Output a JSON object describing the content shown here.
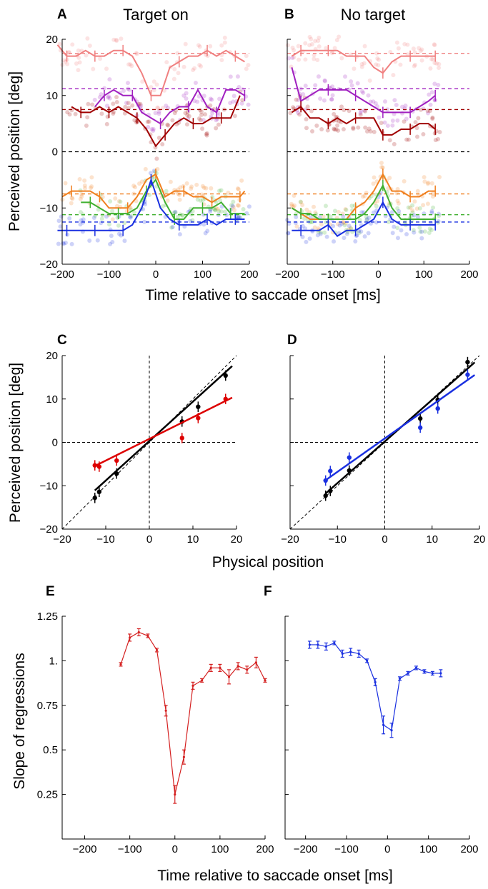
{
  "figure": {
    "panel_letters": [
      "A",
      "B",
      "C",
      "D",
      "E",
      "F"
    ],
    "row1_xlabel": "Time relative to saccade onset [ms]",
    "row2_xlabel": "Physical position",
    "row3_xlabel": "Time relative to saccade onset [ms]"
  },
  "chart_data": [
    {
      "panel": "A",
      "type": "line",
      "title": "Target on",
      "ylabel": "Perceived position [deg]",
      "xlabel": "Time relative to saccade onset [ms]",
      "xlim": [
        -200,
        200
      ],
      "ylim": [
        -20,
        20
      ],
      "xticks": [
        "-200",
        "-100",
        "0",
        "100",
        "200"
      ],
      "yticks": [
        "-20",
        "-10",
        "0",
        "10",
        "20"
      ],
      "reference_lines": [
        {
          "y": 17.5,
          "color": "#f08080"
        },
        {
          "y": 11.2,
          "color": "#a020c0"
        },
        {
          "y": 7.5,
          "color": "#a00000"
        },
        {
          "y": 0,
          "color": "#000000"
        },
        {
          "y": -7.5,
          "color": "#f08020"
        },
        {
          "y": -11.2,
          "color": "#40b030"
        },
        {
          "y": -12.5,
          "color": "#1a30e0"
        }
      ],
      "series": [
        {
          "color": "#f08080",
          "x": [
            -210,
            -190,
            -170,
            -150,
            -130,
            -110,
            -90,
            -70,
            -50,
            -30,
            -10,
            10,
            30,
            50,
            70,
            90,
            110,
            130,
            150,
            170,
            190
          ],
          "y": [
            19,
            17,
            17,
            18,
            17,
            17,
            18,
            18,
            17,
            14,
            10,
            10,
            15,
            16,
            17,
            17,
            18,
            17,
            18,
            17,
            16
          ]
        },
        {
          "color": "#a020c0",
          "x": [
            -130,
            -110,
            -90,
            -70,
            -50,
            -30,
            -10,
            10,
            30,
            50,
            70,
            90,
            110,
            130,
            150,
            170,
            190
          ],
          "y": [
            8,
            10,
            11,
            10,
            10,
            7,
            6,
            5,
            7,
            8,
            8,
            11,
            8,
            7,
            11,
            11,
            10
          ]
        },
        {
          "color": "#a00000",
          "x": [
            -180,
            -160,
            -140,
            -120,
            -100,
            -80,
            -60,
            -40,
            -20,
            0,
            20,
            40,
            60,
            80,
            100,
            120,
            140,
            160,
            180
          ],
          "y": [
            8,
            7,
            7,
            8,
            7,
            8,
            7,
            6,
            4,
            1,
            3,
            5,
            6,
            5,
            5,
            6,
            6,
            6,
            10
          ]
        },
        {
          "color": "#f08020",
          "x": [
            -200,
            -180,
            -160,
            -140,
            -120,
            -100,
            -80,
            -60,
            -40,
            -20,
            0,
            20,
            40,
            60,
            80,
            100,
            120,
            140,
            160,
            180,
            190
          ],
          "y": [
            -8,
            -7,
            -7,
            -7,
            -8,
            -10,
            -10,
            -10,
            -8,
            -5,
            -4,
            -8,
            -7,
            -7,
            -8,
            -8,
            -9,
            -8,
            -8,
            -8,
            -7
          ]
        },
        {
          "color": "#40b030",
          "x": [
            -160,
            -140,
            -120,
            -100,
            -80,
            -60,
            -40,
            -20,
            0,
            20,
            40,
            60,
            80,
            100,
            120,
            140,
            160,
            180,
            190
          ],
          "y": [
            -9,
            -9,
            -10,
            -11,
            -11,
            -11,
            -10,
            -7,
            -5,
            -9,
            -12,
            -12,
            -10,
            -10,
            -10,
            -9,
            -11,
            -11,
            -11
          ]
        },
        {
          "color": "#1a30e0",
          "x": [
            -210,
            -190,
            -170,
            -150,
            -130,
            -110,
            -90,
            -70,
            -50,
            -30,
            -10,
            10,
            30,
            50,
            70,
            90,
            110,
            130,
            150,
            170,
            190
          ],
          "y": [
            -14,
            -14,
            -14,
            -14,
            -14,
            -14,
            -14,
            -14,
            -13,
            -10,
            -5,
            -10,
            -12,
            -13,
            -13,
            -13,
            -12,
            -13,
            -12,
            -12,
            -12
          ]
        }
      ]
    },
    {
      "panel": "B",
      "type": "line",
      "title": "No target",
      "xlim": [
        -200,
        200
      ],
      "ylim": [
        -20,
        20
      ],
      "xticks": [
        "-200",
        "-100",
        "0",
        "100",
        "200"
      ],
      "reference_lines": [
        {
          "y": 17.5,
          "color": "#f08080"
        },
        {
          "y": 11.2,
          "color": "#a020c0"
        },
        {
          "y": 7.5,
          "color": "#a00000"
        },
        {
          "y": 0,
          "color": "#000000"
        },
        {
          "y": -7.5,
          "color": "#f08020"
        },
        {
          "y": -11.2,
          "color": "#40b030"
        },
        {
          "y": -12.5,
          "color": "#1a30e0"
        }
      ],
      "series": [
        {
          "color": "#f08080",
          "x": [
            -190,
            -170,
            -150,
            -130,
            -110,
            -90,
            -70,
            -50,
            -30,
            -10,
            10,
            30,
            50,
            70,
            90,
            110,
            125
          ],
          "y": [
            17,
            18,
            18,
            18,
            18,
            18,
            17,
            17,
            17,
            15,
            14,
            16,
            17,
            17,
            17,
            17,
            17
          ]
        },
        {
          "color": "#a020c0",
          "x": [
            -190,
            -170,
            -150,
            -130,
            -110,
            -90,
            -70,
            -50,
            -30,
            -10,
            10,
            30,
            50,
            70,
            90,
            110,
            125
          ],
          "y": [
            15,
            9,
            10,
            11,
            11,
            11,
            11,
            10,
            9,
            8,
            7,
            7,
            7,
            7,
            8,
            9,
            10
          ]
        },
        {
          "color": "#a00000",
          "x": [
            -190,
            -170,
            -150,
            -130,
            -110,
            -90,
            -70,
            -50,
            -30,
            -10,
            10,
            30,
            50,
            70,
            90,
            110,
            125
          ],
          "y": [
            7,
            8,
            6,
            6,
            5,
            6,
            5,
            6,
            6,
            6,
            3,
            3,
            4,
            4,
            5,
            5,
            4
          ]
        },
        {
          "color": "#f08020",
          "x": [
            -190,
            -170,
            -150,
            -130,
            -110,
            -90,
            -70,
            -50,
            -30,
            -10,
            10,
            30,
            50,
            70,
            90,
            110,
            125
          ],
          "y": [
            -10,
            -11,
            -12,
            -12,
            -12,
            -12,
            -12,
            -10,
            -9,
            -7,
            -4,
            -7,
            -7,
            -8,
            -8,
            -7,
            -7
          ]
        },
        {
          "color": "#40b030",
          "x": [
            -190,
            -170,
            -150,
            -130,
            -110,
            -90,
            -70,
            -50,
            -30,
            -10,
            10,
            30,
            50,
            70,
            90,
            110,
            125
          ],
          "y": [
            -10,
            -11,
            -11,
            -12,
            -12,
            -12,
            -12,
            -12,
            -11,
            -9,
            -6,
            -10,
            -12,
            -12,
            -12,
            -12,
            -12
          ]
        },
        {
          "color": "#1a30e0",
          "x": [
            -190,
            -170,
            -150,
            -130,
            -110,
            -90,
            -70,
            -50,
            -30,
            -10,
            10,
            30,
            50,
            70,
            90,
            110,
            125
          ],
          "y": [
            -14,
            -14,
            -14,
            -14,
            -13,
            -15,
            -14,
            -14,
            -13,
            -12,
            -9,
            -12,
            -13,
            -13,
            -13,
            -13,
            -13
          ]
        }
      ]
    },
    {
      "panel": "C",
      "type": "scatter",
      "ylabel": "Perceived position [deg]",
      "xlabel": "Physical position",
      "xlim": [
        -20,
        20
      ],
      "ylim": [
        -20,
        20
      ],
      "xticks": [
        "-20",
        "-10",
        "0",
        "10",
        "20"
      ],
      "yticks": [
        "-20",
        "-10",
        "0",
        "10",
        "20"
      ],
      "series": [
        {
          "color": "#000000",
          "x": [
            -12.5,
            -11.5,
            -7.5,
            7.5,
            11.2,
            17.5
          ],
          "y": [
            -12.8,
            -11.4,
            -7.2,
            4.8,
            8.2,
            15.4
          ],
          "fit": {
            "slope": 0.91,
            "intercept": 0.3
          }
        },
        {
          "color": "#dd0000",
          "x": [
            -12.5,
            -11.5,
            -7.5,
            7.5,
            11.2,
            17.5
          ],
          "y": [
            -5.3,
            -5.6,
            -4.2,
            1.0,
            5.6,
            10.0
          ],
          "fit": {
            "slope": 0.5,
            "intercept": 0.8
          }
        }
      ]
    },
    {
      "panel": "D",
      "type": "scatter",
      "xlim": [
        -20,
        20
      ],
      "ylim": [
        -20,
        20
      ],
      "xticks": [
        "-20",
        "-10",
        "0",
        "10",
        "20"
      ],
      "series": [
        {
          "color": "#000000",
          "x": [
            -12.5,
            -11.5,
            -7.5,
            7.5,
            11.2,
            17.5
          ],
          "y": [
            -12.3,
            -11.2,
            -6.5,
            5.5,
            9.8,
            18.5
          ],
          "fit": {
            "slope": 0.96,
            "intercept": 0.2
          }
        },
        {
          "color": "#1a30e0",
          "x": [
            -12.5,
            -11.5,
            -7.5,
            7.5,
            11.2,
            17.5
          ],
          "y": [
            -8.8,
            -6.6,
            -3.5,
            3.4,
            7.8,
            15.6
          ],
          "fit": {
            "slope": 0.77,
            "intercept": 0.9
          }
        }
      ]
    },
    {
      "panel": "E",
      "type": "line",
      "ylabel": "Slope of regressions",
      "xlabel": "Time relative to saccade onset [ms]",
      "xlim": [
        -250,
        200
      ],
      "ylim": [
        0,
        1.25
      ],
      "xticks": [
        "-200",
        "-100",
        "0",
        "100",
        "200"
      ],
      "yticks": [
        "0.25",
        "0.5",
        "0.75",
        "1.",
        "1.25"
      ],
      "series": [
        {
          "color": "#d42020",
          "x": [
            -120,
            -100,
            -80,
            -60,
            -40,
            -20,
            0,
            20,
            40,
            60,
            80,
            100,
            120,
            140,
            160,
            180,
            200
          ],
          "y": [
            0.98,
            1.13,
            1.16,
            1.14,
            1.06,
            0.72,
            0.25,
            0.46,
            0.86,
            0.89,
            0.96,
            0.96,
            0.91,
            0.97,
            0.95,
            0.99,
            0.89
          ],
          "err": [
            0.01,
            0.02,
            0.02,
            0.01,
            0.01,
            0.03,
            0.05,
            0.04,
            0.02,
            0.01,
            0.02,
            0.02,
            0.04,
            0.02,
            0.02,
            0.03,
            0.01
          ]
        }
      ]
    },
    {
      "panel": "F",
      "type": "line",
      "xlim": [
        -250,
        200
      ],
      "ylim": [
        0,
        1.25
      ],
      "xticks": [
        "-200",
        "-100",
        "0",
        "100",
        "200"
      ],
      "yticks": [
        "0.25",
        "0.5",
        "0.75",
        "1.",
        "1.25"
      ],
      "series": [
        {
          "color": "#1a30e0",
          "x": [
            -190,
            -170,
            -150,
            -130,
            -110,
            -90,
            -70,
            -50,
            -30,
            -10,
            10,
            30,
            50,
            70,
            90,
            110,
            130
          ],
          "y": [
            1.09,
            1.09,
            1.08,
            1.1,
            1.04,
            1.05,
            1.04,
            1.0,
            0.88,
            0.64,
            0.61,
            0.9,
            0.93,
            0.96,
            0.94,
            0.93,
            0.93
          ],
          "err": [
            0.02,
            0.02,
            0.02,
            0.01,
            0.02,
            0.02,
            0.02,
            0.01,
            0.02,
            0.05,
            0.04,
            0.01,
            0.01,
            0.01,
            0.01,
            0.01,
            0.02
          ]
        }
      ]
    }
  ]
}
